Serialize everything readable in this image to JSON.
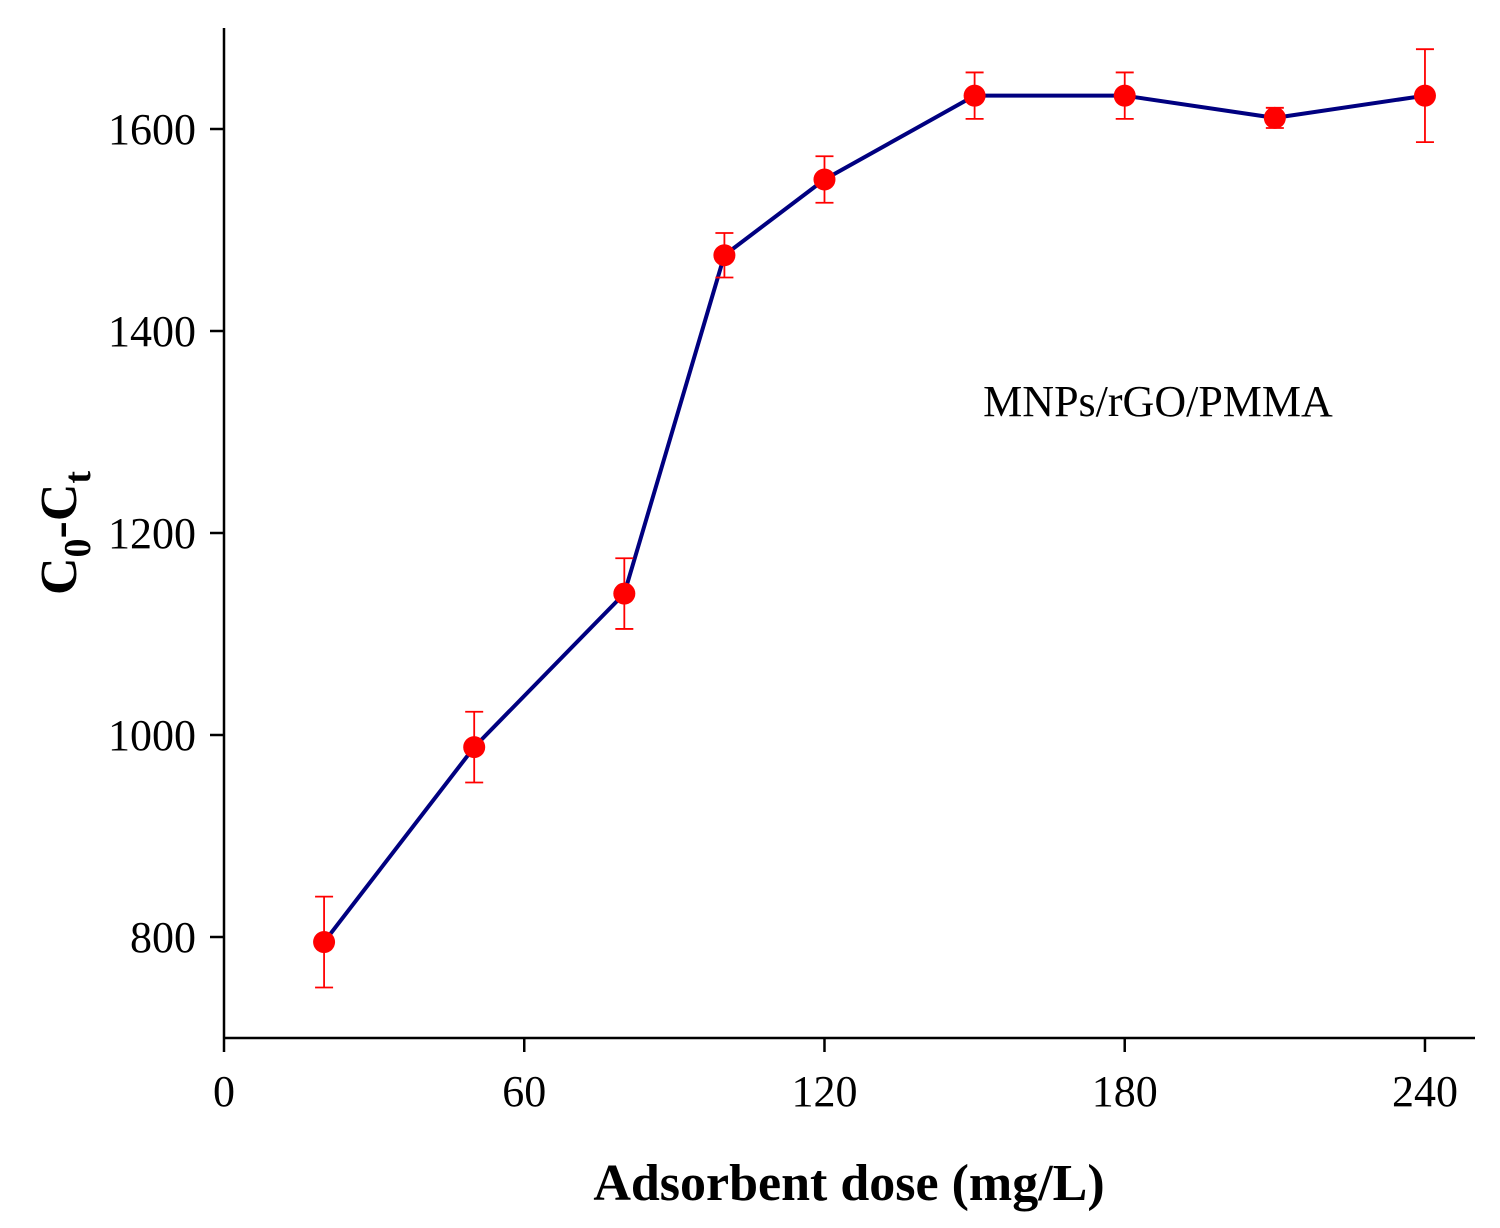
{
  "chart_data": {
    "type": "line",
    "title": "",
    "xlabel": "Adsorbent dose (mg/L)",
    "ylabel": {
      "base": "C",
      "sub0": "0",
      "dash": "-",
      "base2": "C",
      "sub1": "t"
    },
    "xlim": [
      0,
      250
    ],
    "ylim": [
      700,
      1700
    ],
    "xticks": [
      0,
      60,
      120,
      180,
      240
    ],
    "yticks": [
      800,
      1000,
      1200,
      1400,
      1600
    ],
    "grid": false,
    "annotation": "MNPs/rGO/PMMA",
    "series": [
      {
        "name": "MNPs/rGO/PMMA",
        "line_color": "#000080",
        "marker_color": "#ff0000",
        "x": [
          20,
          50,
          80,
          100,
          120,
          150,
          180,
          210,
          240
        ],
        "y": [
          795,
          988,
          1140,
          1475,
          1550,
          1633,
          1633,
          1611,
          1633
        ],
        "error": [
          45,
          35,
          35,
          22,
          23,
          23,
          23,
          10,
          46
        ]
      }
    ]
  }
}
